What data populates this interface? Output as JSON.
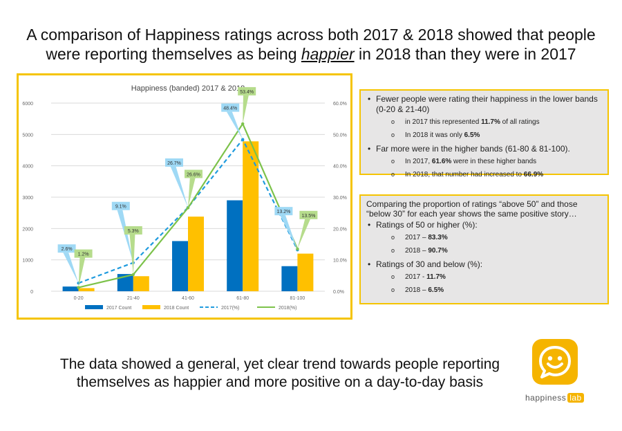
{
  "headline": {
    "line1": "A comparison of Happiness ratings across both 2017 & 2018 showed that people",
    "line2_pre": "were reporting themselves as being ",
    "line2_em": "happier",
    "line2_post": " in 2018 than they were in 2017"
  },
  "box1": {
    "b1": "Fewer people were rating their happiness in the lower bands (0-20 & 21-40)",
    "s1_pre": "in 2017 this represented ",
    "s1_val": "11.7%",
    "s1_post": " of all ratings",
    "s2_pre": "In 2018 it was only ",
    "s2_val": "6.5%",
    "b2": "Far more were in the higher bands (61-80 & 81-100).",
    "s3_pre": "In 2017, ",
    "s3_val": "61.6%",
    "s3_post": " were in these higher bands",
    "s4_pre": "In 2018, that number had increased to ",
    "s4_val": "66.9%"
  },
  "box2": {
    "intro": "Comparing the proportion of ratings “above 50” and those “below 30” for each year shows the same positive story…",
    "b1": "Ratings of 50 or higher (%):",
    "s1_pre": "2017 – ",
    "s1_val": "83.3%",
    "s2_pre": "2018 – ",
    "s2_val": "90.7%",
    "b2": "Ratings of 30 and below (%):",
    "s3_pre": "2017 - ",
    "s3_val": "11.7%",
    "s4_pre": "2018 – ",
    "s4_val": "6.5%"
  },
  "footer": {
    "line1": "The data showed a general, yet clear trend towards people reporting",
    "line2": "themselves as happier and more positive on a day-to-day basis"
  },
  "logo": {
    "word": "happiness",
    "tag": "lab",
    "icon": "smiley-chat-icon",
    "color": "#f5b400"
  },
  "chart_data": {
    "type": "bar",
    "title": "Happiness (banded) 2017 & 2018",
    "categories": [
      "0-20",
      "21-40",
      "41-60",
      "61-80",
      "81-100"
    ],
    "series": [
      {
        "name": "2017 Count",
        "kind": "bar",
        "axis": "left",
        "color": "#0070c0",
        "values": [
          150,
          550,
          1600,
          2900,
          800
        ]
      },
      {
        "name": "2018 Count",
        "kind": "bar",
        "axis": "left",
        "color": "#ffc000",
        "values": [
          100,
          480,
          2380,
          4780,
          1200
        ]
      },
      {
        "name": "2017(%)",
        "kind": "line",
        "axis": "right",
        "color": "#1f9bde",
        "dashed": true,
        "values": [
          2.6,
          9.1,
          26.7,
          48.4,
          13.2
        ],
        "labels": [
          "2.6%",
          "9.1%",
          "26.7%",
          "48.4%",
          "13.2%"
        ]
      },
      {
        "name": "2018(%)",
        "kind": "line",
        "axis": "right",
        "color": "#7cc24a",
        "dashed": false,
        "values": [
          1.2,
          5.3,
          26.6,
          53.4,
          13.5
        ],
        "labels": [
          "1.2%",
          "5.3%",
          "26.6%",
          "53.4%",
          "13.5%"
        ]
      }
    ],
    "ylim_left": [
      0,
      6000
    ],
    "yticks_left": [
      "0",
      "1000",
      "2000",
      "3000",
      "4000",
      "5000",
      "6000"
    ],
    "ylim_right": [
      0,
      60
    ],
    "yticks_right": [
      "0.0%",
      "10.0%",
      "20.0%",
      "30.0%",
      "40.0%",
      "50.0%",
      "60.0%"
    ],
    "grid": true,
    "legend": "bottom",
    "callout_colors": {
      "2017(%)": "#9fd9f5",
      "2018(%)": "#b6dc8c"
    }
  }
}
